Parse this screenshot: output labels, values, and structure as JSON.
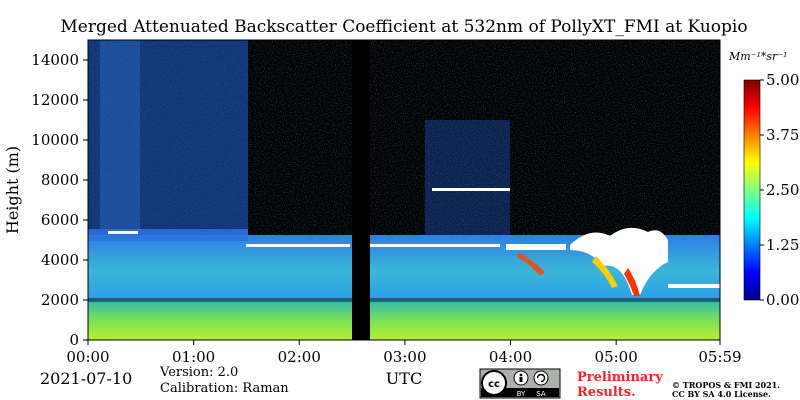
{
  "chart_data": {
    "type": "heatmap",
    "title": "Merged Attenuated Backscatter Coefficient at 532nm of PollyXT_FMI at Kuopio",
    "ylabel": "Height (m)",
    "xlabel": "UTC",
    "x_ticks": [
      "00:00",
      "01:00",
      "02:00",
      "03:00",
      "04:00",
      "05:00",
      "05:59"
    ],
    "x_range_hours": [
      0,
      5.983
    ],
    "y_ticks": [
      0,
      2000,
      4000,
      6000,
      8000,
      10000,
      12000,
      14000
    ],
    "ylim": [
      0,
      15000
    ],
    "colorbar": {
      "label": "Mm⁻¹*sr⁻¹",
      "min": 0,
      "max": 5,
      "ticks": [
        "0.00",
        "1.25",
        "2.50",
        "3.75",
        "5.00"
      ],
      "colormap": "jet"
    },
    "no_data_gap_hours": [
      2.45,
      2.67
    ],
    "date": "2021-07-10",
    "version": "Version: 2.0",
    "calibration": "Calibration: Raman",
    "license_badge": [
      "cc",
      "BY",
      "SA"
    ],
    "preliminary": [
      "Preliminary",
      "Results."
    ],
    "copyright": [
      "© TROPOS & FMI 2021.",
      "CC BY SA 4.0 License."
    ]
  }
}
